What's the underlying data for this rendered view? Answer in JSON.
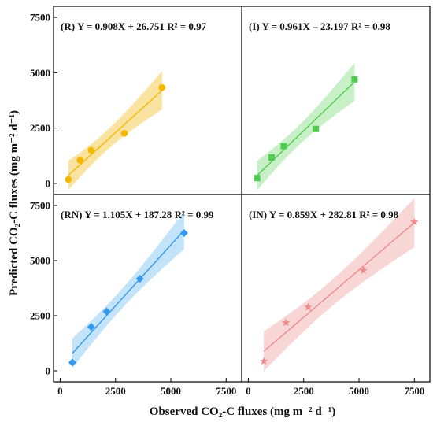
{
  "axes": {
    "xlabel": "Observed CO₂-C fluxes (mg m⁻² d⁻¹)",
    "ylabel": "Predicted CO₂-C fluxes (mg m⁻² d⁻¹)"
  },
  "chart_data": [
    {
      "type": "scatter",
      "panel": "top-left",
      "label": "(R)",
      "equation": "Y = 0.908X + 26.751",
      "r2": "R² = 0.97",
      "marker": "circle",
      "color": "#f5b800",
      "band_color": "#f9dc8a",
      "x": [
        370,
        900,
        1400,
        2900,
        4600
      ],
      "y": [
        180,
        1050,
        1500,
        2260,
        4330
      ],
      "fit": {
        "slope": 0.908,
        "intercept": 26.751,
        "x_range": [
          370,
          4600
        ]
      },
      "xlim": [
        -300,
        8200
      ],
      "ylim": [
        -500,
        8000
      ],
      "xticks": [
        0,
        2500,
        5000,
        7500
      ],
      "yticks": [
        0,
        2500,
        5000,
        7500
      ]
    },
    {
      "type": "scatter",
      "panel": "top-right",
      "label": "(I)",
      "equation": "Y = 0.961X – 23.197",
      "r2": "R² = 0.98",
      "marker": "square",
      "color": "#4fcc4f",
      "band_color": "#b9ecb9",
      "x": [
        400,
        1050,
        1600,
        3050,
        4800
      ],
      "y": [
        240,
        1170,
        1680,
        2460,
        4700
      ],
      "fit": {
        "slope": 0.961,
        "intercept": -23.197,
        "x_range": [
          400,
          4800
        ]
      },
      "xlim": [
        -300,
        8200
      ],
      "ylim": [
        -500,
        8000
      ],
      "xticks": [
        0,
        2500,
        5000,
        7500
      ],
      "yticks": [
        0,
        2500,
        5000,
        7500
      ]
    },
    {
      "type": "scatter",
      "panel": "bottom-left",
      "label": "(RN)",
      "equation": "Y = 1.105X + 187.28",
      "r2": "R² = 0.99",
      "marker": "diamond",
      "color": "#3399ee",
      "band_color": "#b3dcf7",
      "x": [
        550,
        1400,
        2100,
        3600,
        5600
      ],
      "y": [
        380,
        1990,
        2690,
        4180,
        6250
      ],
      "fit": {
        "slope": 1.105,
        "intercept": 187.28,
        "x_range": [
          550,
          5600
        ]
      },
      "xlim": [
        -300,
        8200
      ],
      "ylim": [
        -500,
        8000
      ],
      "xticks": [
        0,
        2500,
        5000,
        7500
      ],
      "yticks": [
        0,
        2500,
        5000,
        7500
      ]
    },
    {
      "type": "scatter",
      "panel": "bottom-right",
      "label": "(IN)",
      "equation": "Y = 0.859X + 282.81",
      "r2": "R² = 0.98",
      "marker": "star",
      "color": "#f08a8a",
      "band_color": "#f8cccc",
      "x": [
        700,
        1700,
        2700,
        5200,
        7500
      ],
      "y": [
        430,
        2180,
        2890,
        4550,
        6750
      ],
      "fit": {
        "slope": 0.859,
        "intercept": 282.81,
        "x_range": [
          700,
          7500
        ]
      },
      "xlim": [
        -300,
        8200
      ],
      "ylim": [
        -500,
        8000
      ],
      "xticks": [
        0,
        2500,
        5000,
        7500
      ],
      "yticks": [
        0,
        2500,
        5000,
        7500
      ]
    }
  ]
}
